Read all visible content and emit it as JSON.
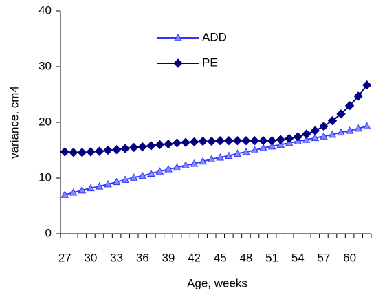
{
  "chart_data": {
    "type": "line",
    "x_label": "Age, weeks",
    "y_label": "variance, cm4",
    "categories": [
      27,
      null,
      null,
      30,
      null,
      null,
      33,
      null,
      null,
      36,
      null,
      null,
      39,
      null,
      null,
      42,
      null,
      null,
      45,
      null,
      null,
      48,
      null,
      null,
      51,
      null,
      null,
      54,
      null,
      null,
      57,
      null,
      null,
      60,
      null,
      null
    ],
    "series": [
      {
        "name": "ADD",
        "color": "#3333ff",
        "marker_fill": "#7f8cff",
        "marker": "triangle",
        "values": [
          7.0,
          7.4,
          7.8,
          8.2,
          8.5,
          8.9,
          9.3,
          9.7,
          10.1,
          10.4,
          10.8,
          11.2,
          11.6,
          11.9,
          12.3,
          12.6,
          13.0,
          13.4,
          13.7,
          14.0,
          14.4,
          14.7,
          15.0,
          15.4,
          15.7,
          16.0,
          16.3,
          16.6,
          16.9,
          17.2,
          17.5,
          17.8,
          18.2,
          18.5,
          18.9,
          19.3
        ]
      },
      {
        "name": "PE",
        "color": "#000080",
        "marker_fill": "#000080",
        "marker": "diamond",
        "values": [
          14.7,
          14.6,
          14.6,
          14.7,
          14.8,
          15.0,
          15.1,
          15.3,
          15.5,
          15.6,
          15.8,
          16.0,
          16.1,
          16.3,
          16.4,
          16.5,
          16.6,
          16.6,
          16.7,
          16.7,
          16.7,
          16.7,
          16.7,
          16.7,
          16.7,
          16.9,
          17.1,
          17.4,
          17.9,
          18.5,
          19.3,
          20.3,
          21.5,
          23.0,
          24.7,
          26.7
        ]
      }
    ],
    "ylim": [
      0,
      40
    ],
    "yticks": [
      0,
      10,
      20,
      30,
      40
    ],
    "grid": false
  }
}
